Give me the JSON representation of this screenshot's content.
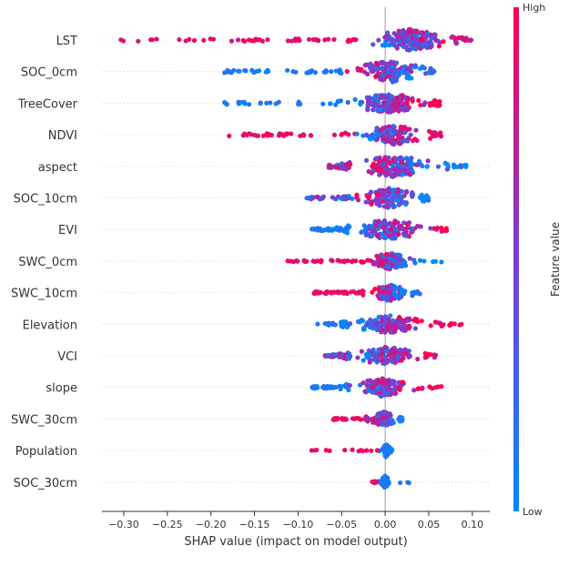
{
  "chart_data": {
    "type": "scatter",
    "subtype": "shap-beeswarm-summary",
    "xlabel": "SHAP value (impact on model output)",
    "xlim": [
      -0.325,
      0.12
    ],
    "xticks": [
      -0.3,
      -0.25,
      -0.2,
      -0.15,
      -0.1,
      -0.05,
      0.0,
      0.05,
      0.1
    ],
    "xtick_labels": [
      "−0.30",
      "−0.25",
      "−0.20",
      "−0.15",
      "−0.10",
      "−0.05",
      "0.00",
      "0.05",
      "0.10"
    ],
    "features": [
      {
        "name": "LST",
        "range": [
          -0.31,
          0.1
        ],
        "core": [
          -0.02,
          0.075
        ],
        "spread": 12,
        "n": 230,
        "color_trend": 1,
        "low_tail": "high",
        "seed": 1
      },
      {
        "name": "SOC_0cm",
        "range": [
          -0.185,
          0.057
        ],
        "core": [
          -0.04,
          0.05
        ],
        "spread": 12,
        "n": 180,
        "color_trend": -1,
        "low_tail": "low",
        "seed": 2
      },
      {
        "name": "TreeCover",
        "range": [
          -0.185,
          0.063
        ],
        "core": [
          -0.04,
          0.05
        ],
        "spread": 11,
        "n": 190,
        "color_trend": 1,
        "low_tail": "low",
        "seed": 3
      },
      {
        "name": "NDVI",
        "range": [
          -0.18,
          0.065
        ],
        "core": [
          -0.03,
          0.05
        ],
        "spread": 11,
        "n": 170,
        "color_trend": 1,
        "low_tail": "high",
        "seed": 4
      },
      {
        "name": "aspect",
        "range": [
          -0.065,
          0.095
        ],
        "core": [
          -0.04,
          0.06
        ],
        "spread": 12,
        "n": 200,
        "color_trend": -1,
        "low_tail": "mix",
        "seed": 5
      },
      {
        "name": "SOC_10cm",
        "range": [
          -0.09,
          0.05
        ],
        "core": [
          -0.03,
          0.04
        ],
        "spread": 11,
        "n": 170,
        "color_trend": -1,
        "low_tail": "mix",
        "seed": 6
      },
      {
        "name": "EVI",
        "range": [
          -0.085,
          0.072
        ],
        "core": [
          -0.04,
          0.05
        ],
        "spread": 11,
        "n": 180,
        "color_trend": 1,
        "low_tail": "low",
        "seed": 7
      },
      {
        "name": "SWC_0cm",
        "range": [
          -0.115,
          0.065
        ],
        "core": [
          -0.02,
          0.03
        ],
        "spread": 9,
        "n": 170,
        "color_trend": -1,
        "low_tail": "high",
        "seed": 8
      },
      {
        "name": "SWC_10cm",
        "range": [
          -0.082,
          0.04
        ],
        "core": [
          -0.02,
          0.03
        ],
        "spread": 9,
        "n": 150,
        "color_trend": -1,
        "low_tail": "high",
        "seed": 9
      },
      {
        "name": "Elevation",
        "range": [
          -0.078,
          0.088
        ],
        "core": [
          -0.04,
          0.05
        ],
        "spread": 10,
        "n": 170,
        "color_trend": 1,
        "low_tail": "low",
        "seed": 10
      },
      {
        "name": "VCI",
        "range": [
          -0.07,
          0.065
        ],
        "core": [
          -0.04,
          0.045
        ],
        "spread": 10,
        "n": 170,
        "color_trend": 1,
        "low_tail": "mix",
        "seed": 11
      },
      {
        "name": "slope",
        "range": [
          -0.085,
          0.065
        ],
        "core": [
          -0.04,
          0.03
        ],
        "spread": 10,
        "n": 160,
        "color_trend": 1,
        "low_tail": "low",
        "seed": 12
      },
      {
        "name": "SWC_30cm",
        "range": [
          -0.06,
          0.02
        ],
        "core": [
          -0.02,
          0.015
        ],
        "spread": 8,
        "n": 130,
        "color_trend": -1,
        "low_tail": "high",
        "seed": 13
      },
      {
        "name": "Population",
        "range": [
          -0.085,
          0.008
        ],
        "core": [
          -0.004,
          0.006
        ],
        "spread": 7,
        "n": 70,
        "color_trend": 0,
        "low_tail": "high",
        "seed": 14
      },
      {
        "name": "SOC_30cm",
        "range": [
          -0.015,
          0.045
        ],
        "core": [
          -0.005,
          0.005
        ],
        "spread": 7,
        "n": 60,
        "color_trend": 0,
        "low_tail": "high",
        "seed": 15
      }
    ],
    "colorbar": {
      "label": "Feature value",
      "high_label": "High",
      "low_label": "Low",
      "low_color": "#008afb",
      "high_color": "#ff0052"
    }
  }
}
